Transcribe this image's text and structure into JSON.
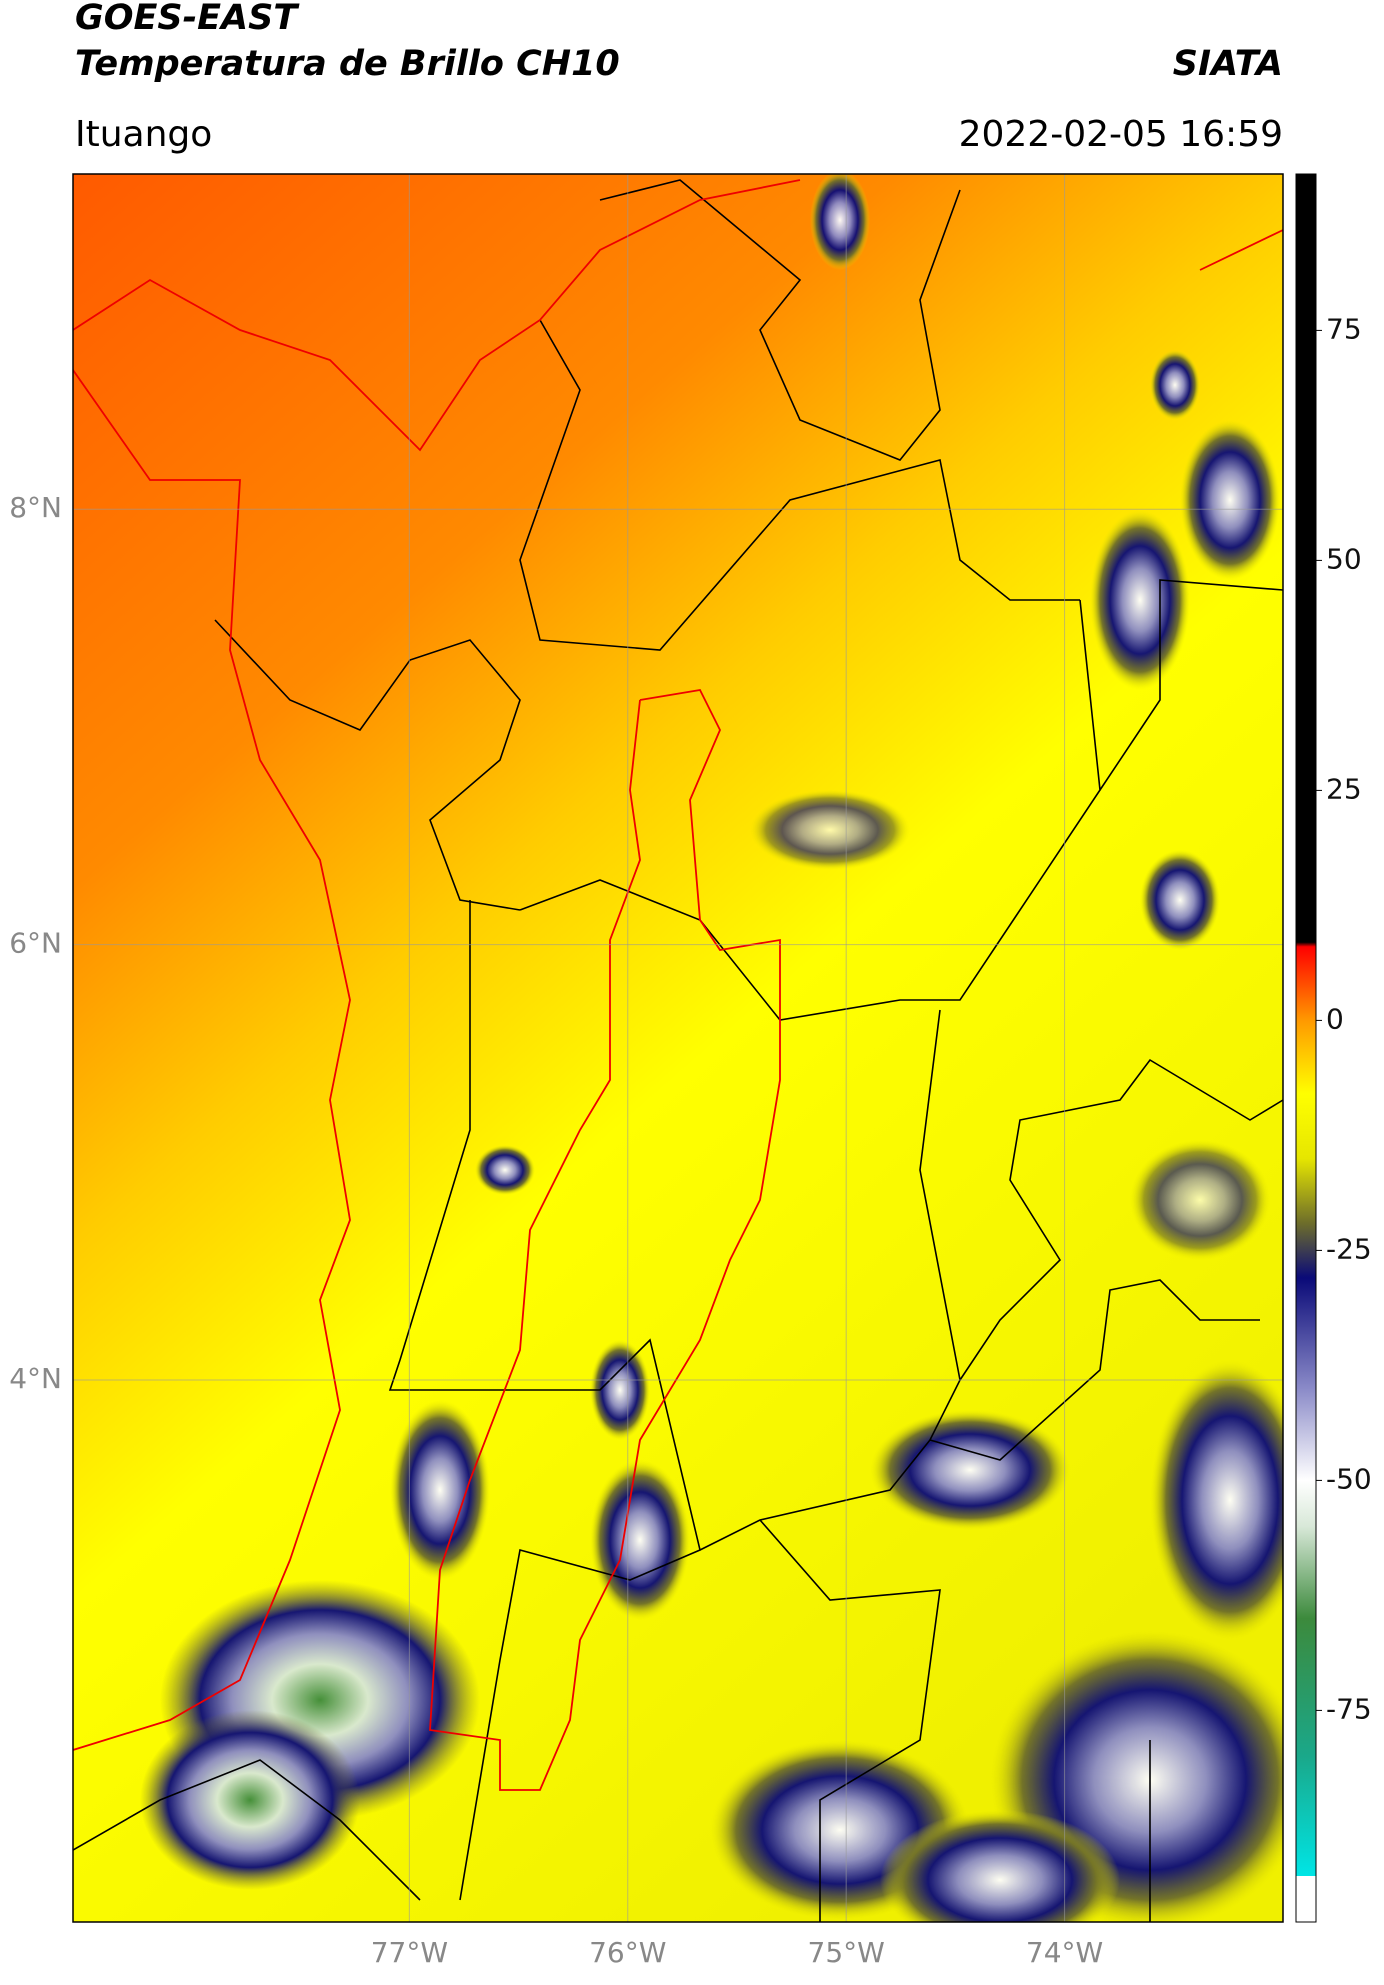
{
  "title": "GOES-EAST",
  "subtitle": "Temperatura de Brillo CH10",
  "source": "SIATA",
  "region": "Ituango",
  "datetime": "2022-02-05 16:59",
  "map": {
    "xlim": [
      -78.54,
      -73.0
    ],
    "ylim": [
      1.51,
      9.54
    ],
    "xticks": [
      {
        "value": -77,
        "label": "77°W"
      },
      {
        "value": -76,
        "label": "76°W"
      },
      {
        "value": -75,
        "label": "75°W"
      },
      {
        "value": -74,
        "label": "74°W"
      }
    ],
    "yticks": [
      {
        "value": 8,
        "label": "8°N"
      },
      {
        "value": 6,
        "label": "6°N"
      },
      {
        "value": 4,
        "label": "4°N"
      }
    ],
    "grid": true
  },
  "colorbar": {
    "clim": [
      -98,
      92
    ],
    "ticks": [
      75,
      50,
      25,
      0,
      -25,
      -50,
      -75
    ],
    "colormap": [
      {
        "value": -98,
        "color": "#ffffff"
      },
      {
        "value": -93,
        "color": "#ffffff"
      },
      {
        "value": -93,
        "color": "#00e5e5"
      },
      {
        "value": -80,
        "color": "#1aa88a"
      },
      {
        "value": -65,
        "color": "#3c8a3c"
      },
      {
        "value": -55,
        "color": "#d8e8d8"
      },
      {
        "value": -50,
        "color": "#ffffff"
      },
      {
        "value": -40,
        "color": "#8a8ac8"
      },
      {
        "value": -28,
        "color": "#0a0a78"
      },
      {
        "value": -22,
        "color": "#6e6e2a"
      },
      {
        "value": -15,
        "color": "#e6e600"
      },
      {
        "value": -8,
        "color": "#ffff00"
      },
      {
        "value": 0,
        "color": "#ff9900"
      },
      {
        "value": 8,
        "color": "#ff0000"
      },
      {
        "value": 8.5,
        "color": "#000000"
      },
      {
        "value": 92,
        "color": "#000000"
      }
    ]
  }
}
